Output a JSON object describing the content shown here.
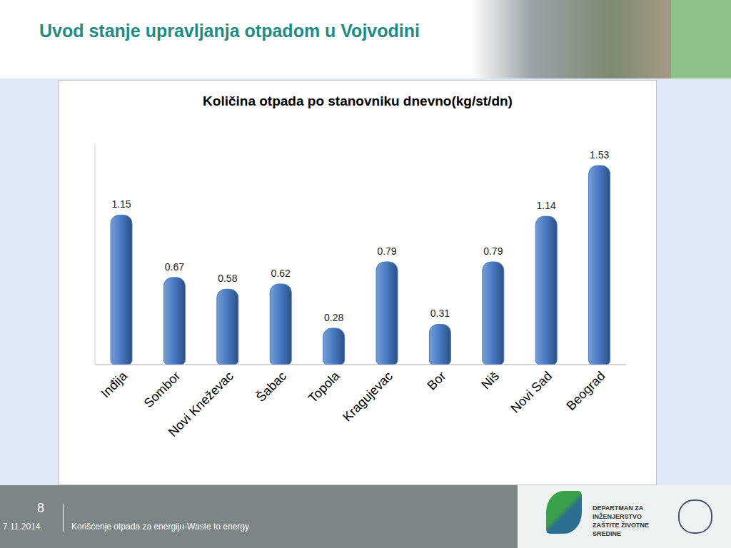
{
  "slide": {
    "title": "Uvod stanje upravljanja otpadom u Vojvodini",
    "page": "8",
    "date": "7.11.2014.",
    "footer": "Korišćenje otpada za energiju-Waste to energy",
    "logo_text": "DEPARTMAN ZA INŽENJERSTVO ZAŠTITE ŽIVOTNE SREDINE"
  },
  "chart_data": {
    "type": "bar",
    "title": "Količina otpada po stanovniku dnevno(kg/st/dn)",
    "categories": [
      "Inđija",
      "Sombor",
      "Novi Kneževac",
      "Šabac",
      "Topola",
      "Kragujevac",
      "Bor",
      "Niš",
      "Novi Sad",
      "Beograd"
    ],
    "values": [
      1.15,
      0.67,
      0.58,
      0.62,
      0.28,
      0.79,
      0.31,
      0.79,
      1.14,
      1.53
    ],
    "color": "#4a7cc4",
    "ylim": [
      0,
      1.7
    ],
    "data_labels": true,
    "tick_labels": "x",
    "grid": false
  }
}
